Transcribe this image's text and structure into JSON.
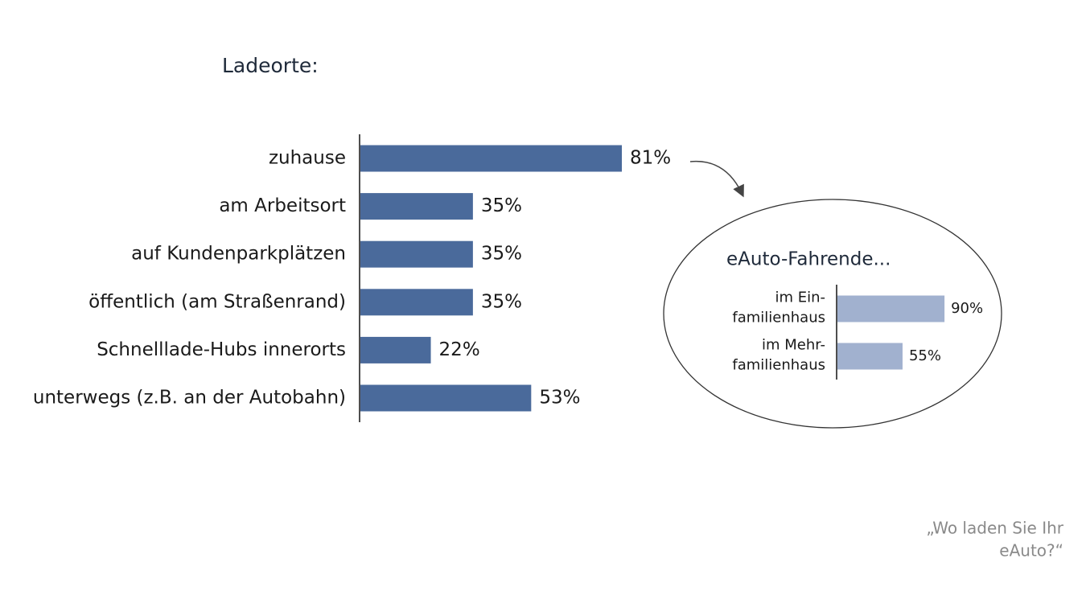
{
  "chart_data": [
    {
      "type": "bar",
      "orientation": "horizontal",
      "title": "Ladeorte:",
      "categories": [
        "zuhause",
        "am Arbeitsort",
        "auf Kundenparkplätzen",
        "öffentlich (am Straßenrand)",
        "Schnelllade-Hubs innerorts",
        "unterwegs (z.B. an der Autobahn)"
      ],
      "values": [
        81,
        35,
        35,
        35,
        22,
        53
      ],
      "value_labels": [
        "81%",
        "35%",
        "35%",
        "35%",
        "22%",
        "53%"
      ],
      "color": "#4a6a9b",
      "annotation": [
        "„Wo laden Sie Ihr",
        "eAuto?“"
      ]
    },
    {
      "type": "bar",
      "orientation": "horizontal",
      "title": "eAuto-Fahrende...",
      "categories": [
        [
          "im Ein-",
          "familienhaus"
        ],
        [
          "im Mehr-",
          "familienhaus"
        ]
      ],
      "values": [
        90,
        55
      ],
      "value_labels": [
        "90%",
        "55%"
      ],
      "color": "#a1b1cf"
    }
  ]
}
